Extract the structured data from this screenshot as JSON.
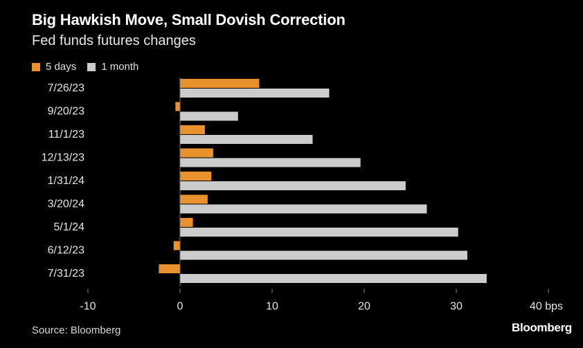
{
  "header": {
    "title": "Big Hawkish Move, Small Dovish Correction",
    "subtitle": "Fed funds futures changes"
  },
  "legend": [
    {
      "label": "5 days",
      "color": "#e8912d"
    },
    {
      "label": "1 month",
      "color": "#cccccc"
    }
  ],
  "footer": {
    "source": "Source: Bloomberg",
    "brand": "Bloomberg"
  },
  "chart_data": {
    "type": "bar",
    "orientation": "horizontal",
    "categories": [
      "7/26/23",
      "9/20/23",
      "11/1/23",
      "12/13/23",
      "1/31/24",
      "3/20/24",
      "5/1/24",
      "6/12/23",
      "7/31/23"
    ],
    "series": [
      {
        "name": "5 days",
        "color": "#e8912d",
        "values": [
          8.6,
          -0.5,
          2.7,
          3.6,
          3.4,
          3.0,
          1.4,
          -0.7,
          -2.3
        ]
      },
      {
        "name": "1 month",
        "color": "#cccccc",
        "values": [
          16.2,
          6.3,
          14.4,
          19.6,
          24.5,
          26.8,
          30.2,
          31.2,
          33.3
        ]
      }
    ],
    "xlim": [
      -10,
      40
    ],
    "xticks": [
      -10,
      0,
      10,
      20,
      30,
      40
    ],
    "xtick_labels": [
      "-10",
      "0",
      "10",
      "20",
      "30",
      "40 bps"
    ],
    "grid": false,
    "legend_position": "top-left"
  }
}
